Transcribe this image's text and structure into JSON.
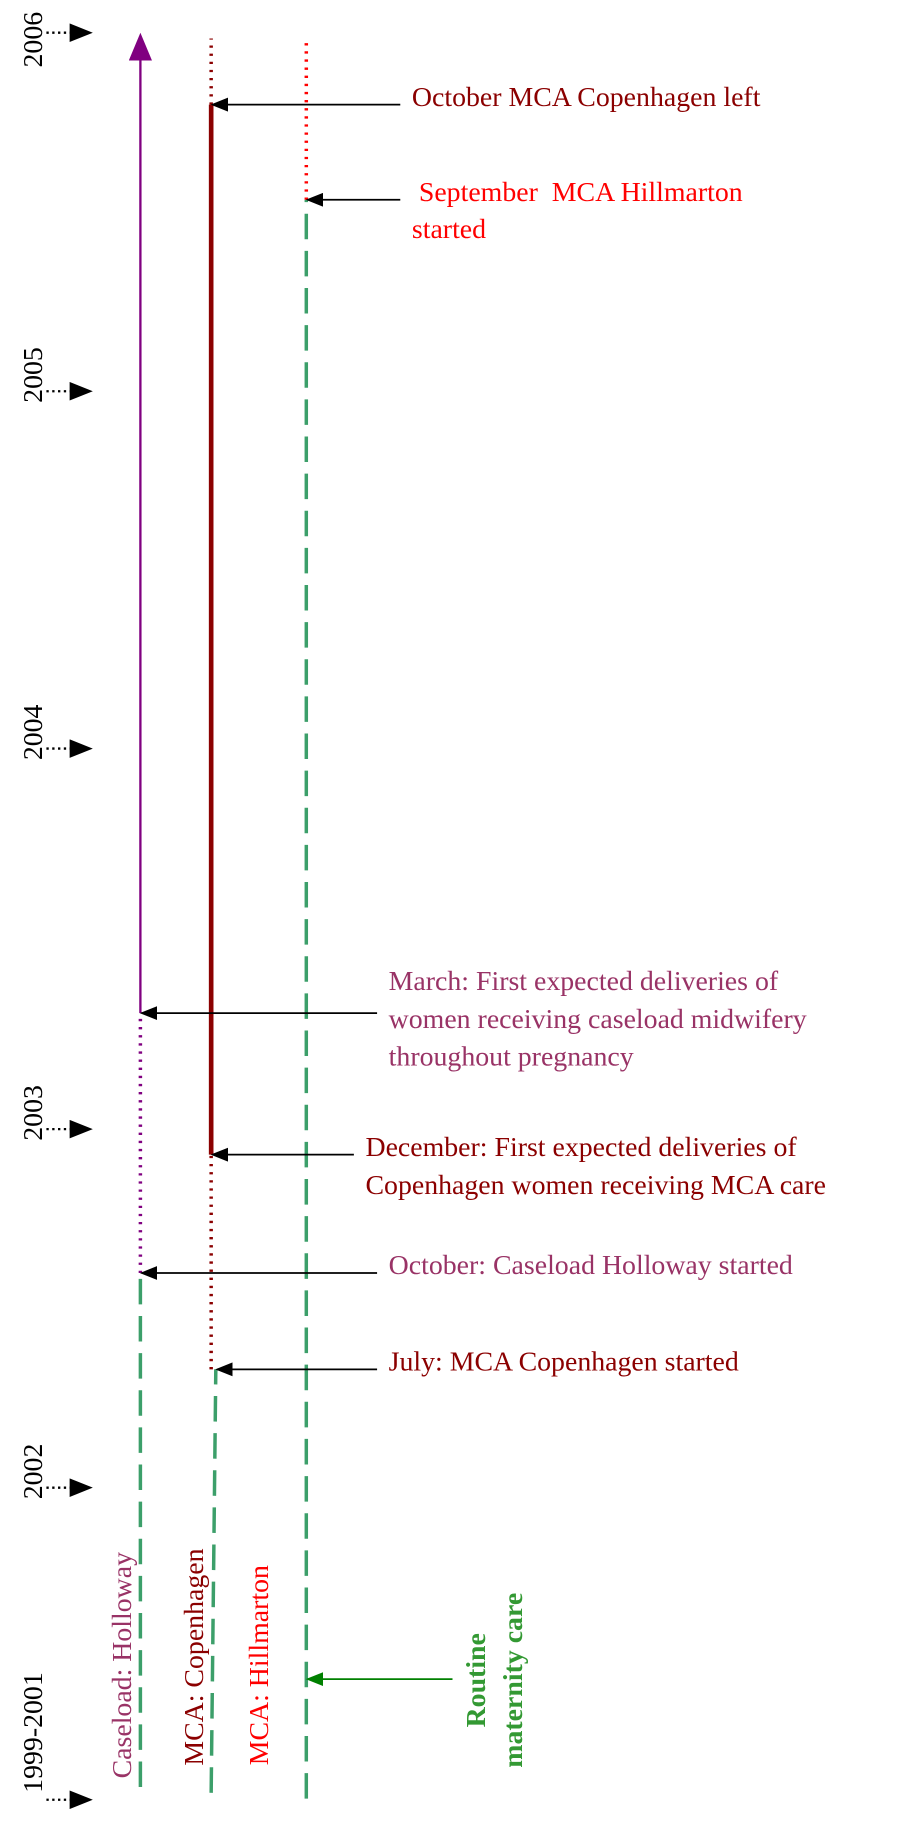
{
  "years": [
    "2006",
    "2005",
    "2004",
    "2003",
    "2002",
    "1999-2001"
  ],
  "lanes": [
    "Caseload: Holloway",
    "MCA: Copenhagen",
    "MCA: Hillmarton"
  ],
  "events": [
    {
      "lines": [
        "October  MCA Copenhagen left"
      ]
    },
    {
      "lines": [
        " September  MCA Hillmarton",
        "started"
      ]
    },
    {
      "lines": [
        "March: First expected deliveries of",
        "women receiving caseload midwifery",
        "throughout pregnancy"
      ]
    },
    {
      "lines": [
        "December: First expected deliveries of",
        "Copenhagen women receiving MCA care"
      ]
    },
    {
      "lines": [
        "October: Caseload Holloway started"
      ]
    },
    {
      "lines": [
        "July: MCA Copenhagen started"
      ]
    }
  ],
  "routine": {
    "lines": [
      "Routine",
      "maternity care"
    ]
  }
}
